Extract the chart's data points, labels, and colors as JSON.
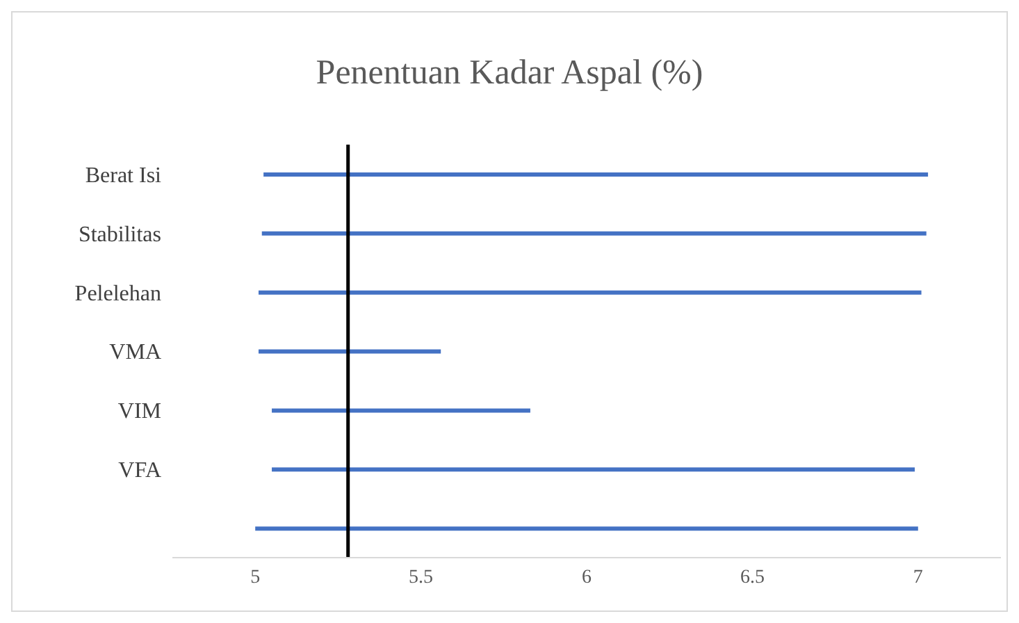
{
  "chart_data": {
    "type": "bar",
    "orientation": "horizontal",
    "title": "Penentuan Kadar Aspal (%)",
    "categories": [
      "Berat Isi",
      "Stabilitas",
      "Pelelehan",
      "VMA",
      "VIM",
      "VFA",
      null
    ],
    "base": [
      5.025,
      5.02,
      5.01,
      5.01,
      5.05,
      5.05,
      5.0
    ],
    "values": [
      2.005,
      2.005,
      2.0,
      0.55,
      0.78,
      1.94,
      2.0
    ],
    "color": "#4472c4",
    "xlim": [
      4.75,
      7.25
    ],
    "xticks": [
      5,
      5.5,
      6,
      6.5,
      7
    ],
    "ref_lines": [
      {
        "axis": "x",
        "value": 5.28,
        "color": "#000000"
      }
    ],
    "grid": false
  }
}
